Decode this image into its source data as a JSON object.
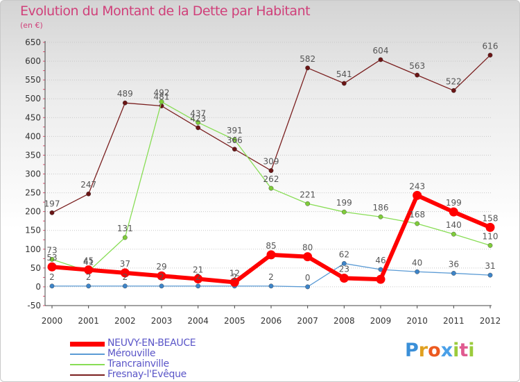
{
  "chart_data": {
    "type": "line",
    "title": "Evolution du Montant de la Dette par Habitant",
    "unit": "(en €)",
    "x": [
      "2000",
      "2001",
      "2002",
      "2003",
      "2004",
      "2005",
      "2006",
      "2007",
      "2008",
      "2009",
      "2010",
      "2011",
      "2012"
    ],
    "yticks": [
      -50,
      0,
      50,
      100,
      150,
      200,
      250,
      300,
      350,
      400,
      450,
      500,
      550,
      600,
      650
    ],
    "ylim": [
      -50,
      650
    ],
    "grid": "horizontal dotted",
    "legend_position": "bottom-left",
    "series": [
      {
        "name": "NEUVY-EN-BEAUCE",
        "color": "#ff0000",
        "values": [
          53,
          45,
          37,
          29,
          21,
          12,
          85,
          80,
          23,
          20,
          243,
          199,
          158
        ],
        "labels": [
          "53",
          "45",
          "37",
          "29",
          "21",
          "12",
          "85",
          "80",
          "23",
          "",
          "243",
          "199",
          "158"
        ]
      },
      {
        "name": "Mérouville",
        "color": "#5b9bd5",
        "values": [
          2,
          2,
          2,
          2,
          2,
          2,
          2,
          0,
          62,
          46,
          40,
          36,
          31
        ],
        "labels": [
          "2",
          "2",
          "2",
          "2",
          "2",
          "2",
          "2",
          "0",
          "62",
          "46",
          "40",
          "36",
          "31"
        ]
      },
      {
        "name": "Trancrainville",
        "color": "#88dd55",
        "values": [
          73,
          41,
          131,
          492,
          437,
          391,
          262,
          221,
          199,
          186,
          168,
          140,
          110
        ],
        "labels": [
          "73",
          "41",
          "131",
          "492",
          "437",
          "391",
          "262",
          "221",
          "199",
          "186",
          "168",
          "140",
          "110"
        ]
      },
      {
        "name": "Fresnay-l'Evêque",
        "color": "#7a1f1f",
        "values": [
          197,
          247,
          489,
          481,
          423,
          366,
          309,
          582,
          541,
          604,
          563,
          522,
          616
        ],
        "labels": [
          "197",
          "247",
          "489",
          "481",
          "423",
          "366",
          "309",
          "582",
          "541",
          "604",
          "563",
          "522",
          "616"
        ]
      }
    ]
  },
  "logo": {
    "letters": [
      "P",
      "r",
      "o",
      "x",
      "i",
      "t",
      "i"
    ],
    "colors": [
      "#3a8fd8",
      "#e0a020",
      "#ec5a20",
      "#4aa0e8",
      "#9bcb3c",
      "#e05a90",
      "#9bcb3c"
    ]
  }
}
